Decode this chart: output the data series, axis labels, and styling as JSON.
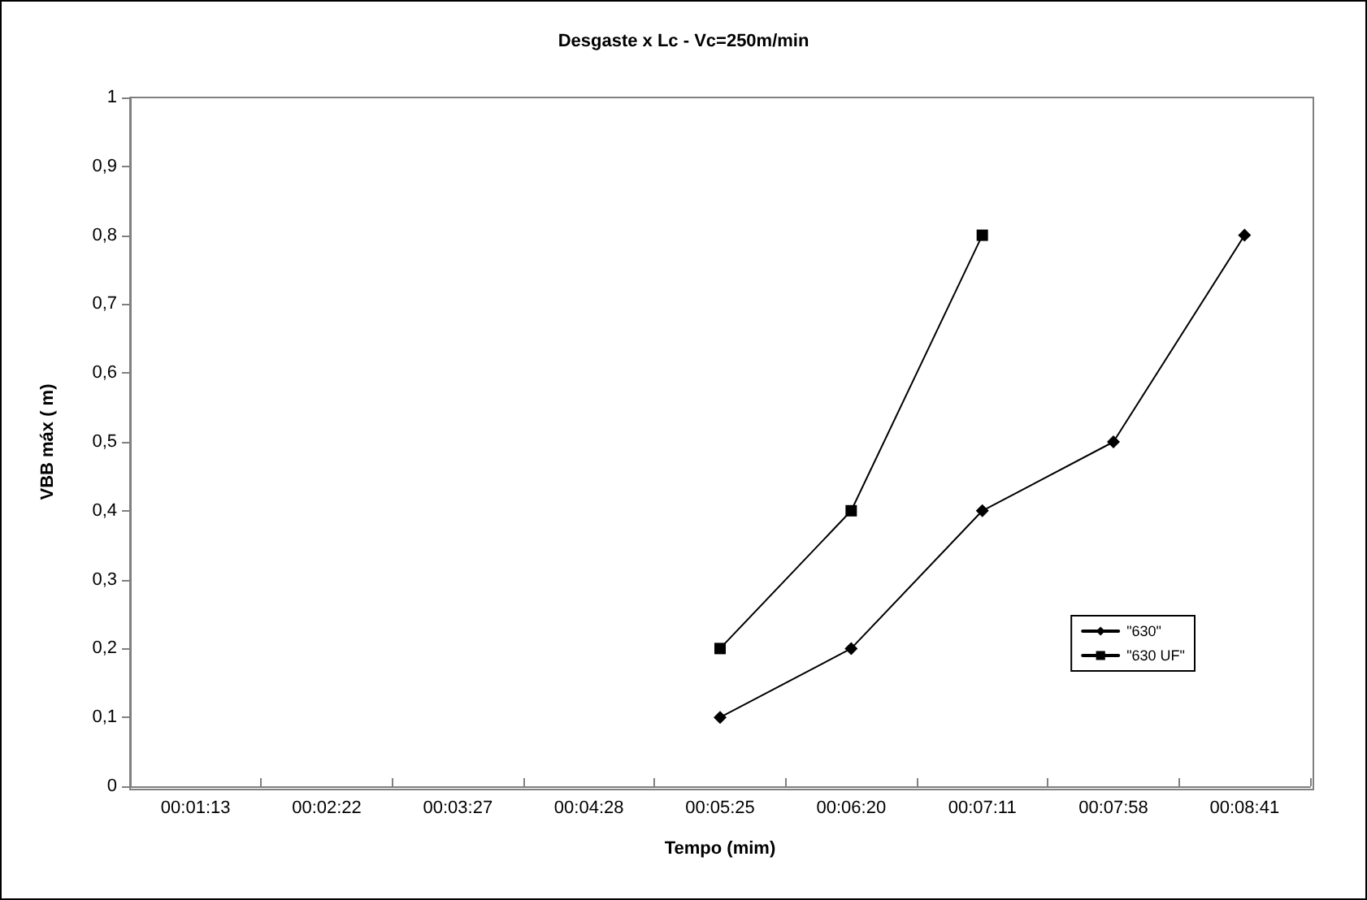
{
  "chart_data": {
    "type": "line",
    "title": "Desgaste x Lc - Vc=250m/min",
    "xlabel": "Tempo (mim)",
    "ylabel": "VBB máx ( m)",
    "categories": [
      "00:01:13",
      "00:02:22",
      "00:03:27",
      "00:04:28",
      "00:05:25",
      "00:06:20",
      "00:07:11",
      "00:07:58",
      "00:08:41"
    ],
    "series": [
      {
        "name": "\"630\"",
        "color": "#000000",
        "marker": "diamond",
        "values": [
          null,
          null,
          null,
          null,
          0.1,
          0.2,
          0.4,
          0.5,
          0.8
        ]
      },
      {
        "name": "\"630 UF\"",
        "color": "#000000",
        "marker": "square",
        "values": [
          null,
          null,
          null,
          null,
          0.2,
          0.4,
          0.8,
          null,
          null
        ]
      }
    ],
    "ylim": [
      0,
      1
    ],
    "yticks": [
      0,
      {
        "value": 0.1,
        "label": "0,1"
      },
      {
        "value": 0.2,
        "label": "0,2"
      },
      {
        "value": 0.3,
        "label": "0,3"
      },
      {
        "value": 0.4,
        "label": "0,4"
      },
      {
        "value": 0.5,
        "label": "0,5"
      },
      {
        "value": 0.6,
        "label": "0,6"
      },
      {
        "value": 0.7,
        "label": "0,7"
      },
      {
        "value": 0.8,
        "label": "0,8"
      },
      {
        "value": 0.9,
        "label": "0,9"
      },
      1
    ],
    "grid": false,
    "legend": "right",
    "line_style": "solid"
  }
}
